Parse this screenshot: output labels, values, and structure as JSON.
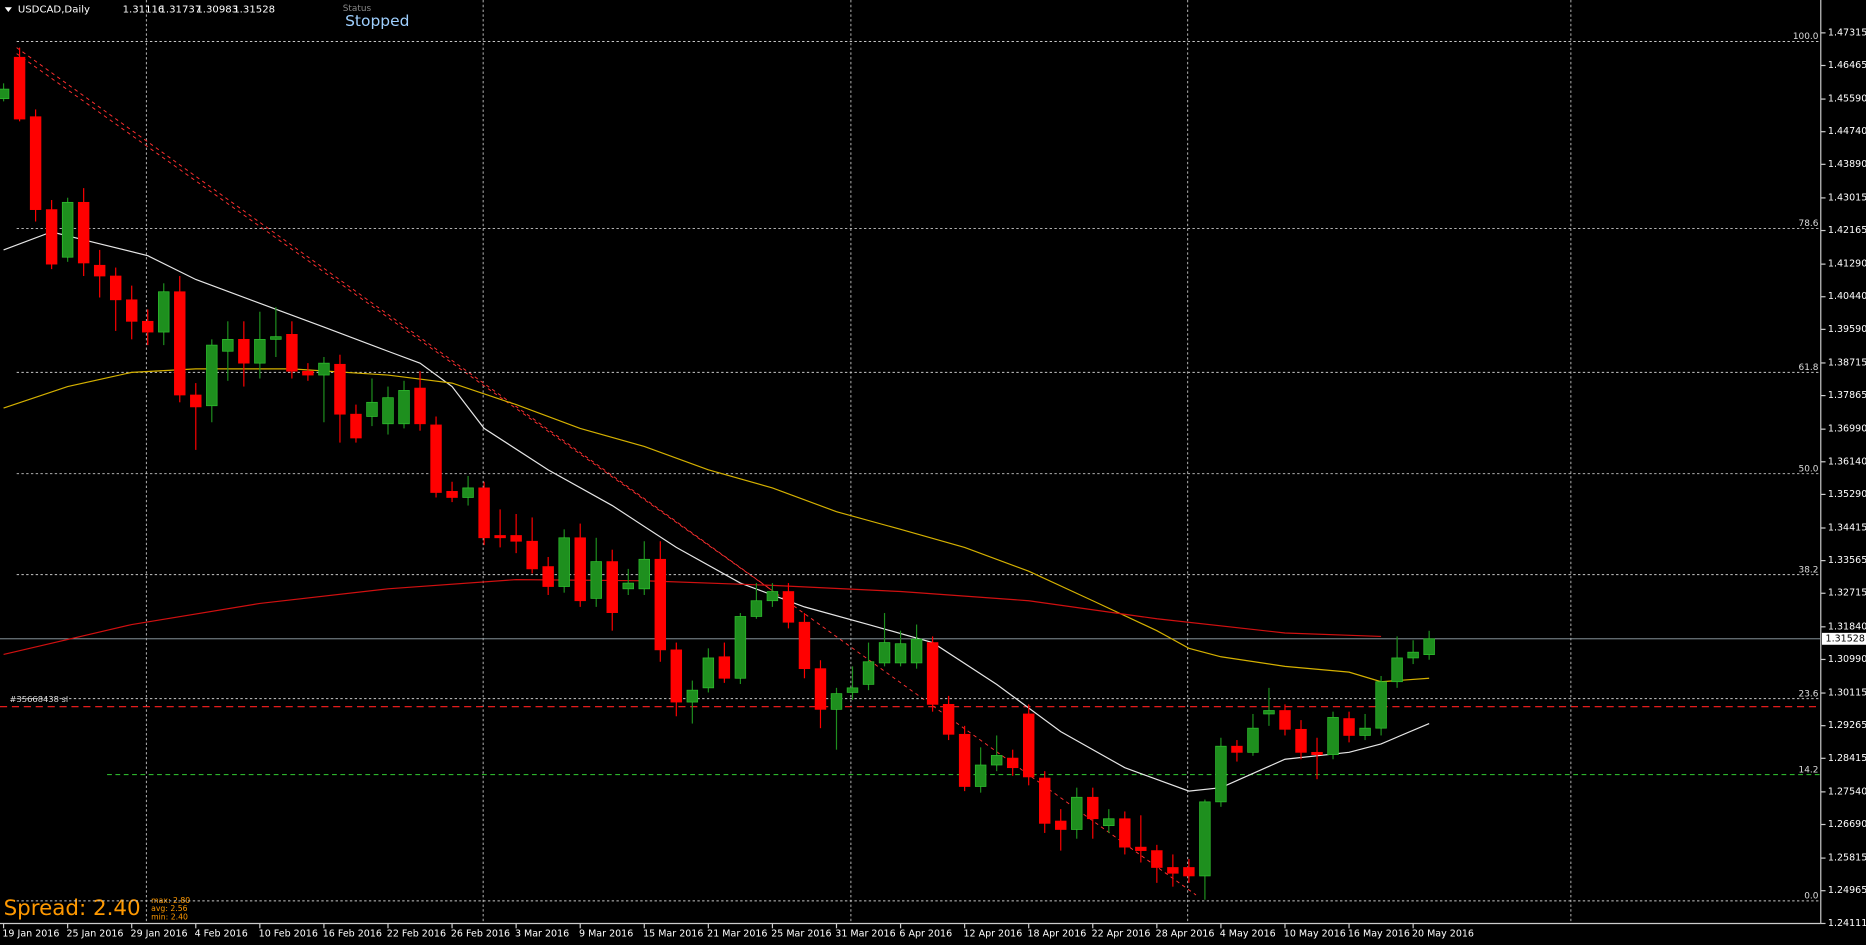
{
  "chart_data": {
    "type": "candlestick",
    "symbol": "USDCAD,Daily",
    "status_label": "Status",
    "status": "Stopped",
    "open": [
      1.456,
      1.4668,
      1.4513,
      1.4271,
      1.4147,
      1.429,
      1.4126,
      1.4098,
      1.4036,
      1.398,
      1.3952,
      1.4057,
      1.3788,
      1.376,
      1.3902,
      1.3933,
      1.3871,
      1.3933,
      1.3946,
      1.385,
      1.384,
      1.3868,
      1.3738,
      1.3732,
      1.3713,
      1.3713,
      1.3806,
      1.371,
      1.3537,
      1.3521,
      1.3546,
      1.3422,
      1.3422,
      1.3407,
      1.3341,
      1.3289,
      1.3416,
      1.3258,
      1.3354,
      1.3283,
      1.3283,
      1.336,
      1.3124,
      1.2988,
      1.3025,
      1.3106,
      1.305,
      1.3211,
      1.3252,
      1.3276,
      1.3196,
      1.3075,
      1.2969,
      1.3013,
      1.3034,
      1.309,
      1.309,
      1.309,
      1.3143,
      1.2982,
      1.2904,
      1.2768,
      1.2824,
      1.2842,
      1.2957,
      1.279,
      1.2678,
      1.2656,
      1.274,
      1.2666,
      1.2684,
      1.261,
      1.2601,
      1.2557,
      1.2557,
      1.2535,
      1.2728,
      1.2873,
      1.2857,
      1.2957,
      1.2966,
      1.2917,
      1.2857,
      1.2851,
      1.2945,
      1.2901,
      1.292,
      1.3041,
      1.3103,
      1.31116
    ],
    "high": [
      1.46,
      1.4693,
      1.4532,
      1.4296,
      1.4302,
      1.4327,
      1.4166,
      1.412,
      1.4073,
      1.4011,
      1.4079,
      1.4098,
      1.3819,
      1.3933,
      1.398,
      1.398,
      1.4005,
      1.4017,
      1.398,
      1.3871,
      1.3887,
      1.3893,
      1.3763,
      1.3831,
      1.381,
      1.3825,
      1.385,
      1.3732,
      1.3562,
      1.3577,
      1.3562,
      1.349,
      1.3478,
      1.3469,
      1.3366,
      1.3438,
      1.3453,
      1.3416,
      1.3385,
      1.3335,
      1.3407,
      1.3407,
      1.3143,
      1.3044,
      1.3128,
      1.3143,
      1.322,
      1.3298,
      1.3298,
      1.3298,
      1.322,
      1.3097,
      1.3025,
      1.3081,
      1.3143,
      1.322,
      1.3174,
      1.319,
      1.3159,
      1.3004,
      1.2926,
      1.287,
      1.2901,
      1.2864,
      1.2982,
      1.2808,
      1.2709,
      1.2765,
      1.2765,
      1.2709,
      1.2703,
      1.2693,
      1.2616,
      1.2591,
      1.2579,
      1.2734,
      1.2895,
      1.2889,
      1.2957,
      1.3025,
      1.2982,
      1.2941,
      1.2895,
      1.2963,
      1.2963,
      1.2957,
      1.3056,
      1.3159,
      1.3149,
      1.31737
    ],
    "low": [
      1.4553,
      1.4501,
      1.424,
      1.4116,
      1.4135,
      1.4098,
      1.4042,
      1.3955,
      1.3933,
      1.3918,
      1.3918,
      1.3769,
      1.3645,
      1.3717,
      1.3825,
      1.381,
      1.3831,
      1.3887,
      1.3831,
      1.3825,
      1.3717,
      1.3664,
      1.3664,
      1.3707,
      1.3685,
      1.3701,
      1.3695,
      1.3521,
      1.3509,
      1.35,
      1.3397,
      1.3391,
      1.3376,
      1.3323,
      1.3267,
      1.3273,
      1.3236,
      1.3236,
      1.3174,
      1.3267,
      1.3267,
      1.3093,
      1.2951,
      1.2932,
      1.3013,
      1.3038,
      1.3035,
      1.3205,
      1.3236,
      1.318,
      1.305,
      1.292,
      1.2864,
      1.2994,
      1.3019,
      1.3081,
      1.3081,
      1.3075,
      1.2963,
      1.2889,
      1.2756,
      1.2752,
      1.2808,
      1.2796,
      1.2771,
      1.2647,
      1.2601,
      1.2632,
      1.2632,
      1.2647,
      1.2591,
      1.257,
      1.2517,
      1.2507,
      1.2517,
      1.2473,
      1.2715,
      1.2833,
      1.2848,
      1.2926,
      1.2901,
      1.2839,
      1.2787,
      1.2839,
      1.2883,
      1.2889,
      1.2901,
      1.3025,
      1.3087,
      1.30983
    ],
    "close": [
      1.4585,
      1.4507,
      1.4271,
      1.4129,
      1.429,
      1.4132,
      1.4098,
      1.4036,
      1.398,
      1.3952,
      1.4057,
      1.3788,
      1.3757,
      1.3918,
      1.3933,
      1.3871,
      1.3933,
      1.394,
      1.385,
      1.384,
      1.3871,
      1.3738,
      1.3676,
      1.3769,
      1.3781,
      1.38,
      1.3713,
      1.3534,
      1.3521,
      1.3546,
      1.3416,
      1.3416,
      1.3407,
      1.3335,
      1.3289,
      1.3416,
      1.3252,
      1.3354,
      1.3221,
      1.3298,
      1.336,
      1.3124,
      1.2988,
      1.3019,
      1.3103,
      1.305,
      1.3211,
      1.3252,
      1.3276,
      1.3196,
      1.3075,
      1.2969,
      1.301,
      1.3025,
      1.3093,
      1.3143,
      1.314,
      1.3152,
      1.2982,
      1.2904,
      1.2768,
      1.2824,
      1.2849,
      1.2817,
      1.2793,
      1.2672,
      1.2656,
      1.274,
      1.2684,
      1.2684,
      1.261,
      1.2601,
      1.2557,
      1.2542,
      1.2535,
      1.2728,
      1.2873,
      1.2857,
      1.292,
      1.2966,
      1.2917,
      1.2857,
      1.2851,
      1.2948,
      1.2901,
      1.292,
      1.3041,
      1.3103,
      1.3118,
      1.31528
    ],
    "up_color": "#1e8f1e",
    "down_color": "#ff0000",
    "xlim": [
      -0.223,
      113.45
    ],
    "xticks": [
      {
        "value": 0,
        "label": "19 Jan 2016"
      },
      {
        "value": 4,
        "label": "25 Jan 2016"
      },
      {
        "value": 8,
        "label": "29 Jan 2016"
      },
      {
        "value": 12,
        "label": "4 Feb 2016"
      },
      {
        "value": 16,
        "label": "10 Feb 2016"
      },
      {
        "value": 20,
        "label": "16 Feb 2016"
      },
      {
        "value": 24,
        "label": "22 Feb 2016"
      },
      {
        "value": 28,
        "label": "26 Feb 2016"
      },
      {
        "value": 32,
        "label": "3 Mar 2016"
      },
      {
        "value": 36,
        "label": "9 Mar 2016"
      },
      {
        "value": 40,
        "label": "15 Mar 2016"
      },
      {
        "value": 44,
        "label": "21 Mar 2016"
      },
      {
        "value": 48,
        "label": "25 Mar 2016"
      },
      {
        "value": 52,
        "label": "31 Mar 2016"
      },
      {
        "value": 56,
        "label": "6 Apr 2016"
      },
      {
        "value": 60,
        "label": "12 Apr 2016"
      },
      {
        "value": 64,
        "label": "18 Apr 2016"
      },
      {
        "value": 68,
        "label": "22 Apr 2016"
      },
      {
        "value": 72,
        "label": "28 Apr 2016"
      },
      {
        "value": 76,
        "label": "4 May 2016"
      },
      {
        "value": 80,
        "label": "10 May 2016"
      },
      {
        "value": 84,
        "label": "16 May 2016"
      },
      {
        "value": 88,
        "label": "20 May 2016"
      }
    ],
    "ylim": [
      1.2411,
      1.4817
    ],
    "yticks": [
      1.47315,
      1.46465,
      {
        "value": 1.4559,
        "label": "1.45590"
      },
      {
        "value": 1.4474,
        "label": "1.44740"
      },
      {
        "value": 1.4389,
        "label": "1.43890"
      },
      1.43015,
      1.42165,
      {
        "value": 1.4129,
        "label": "1.41290"
      },
      {
        "value": 1.4044,
        "label": "1.40440"
      },
      {
        "value": 1.3959,
        "label": "1.39590"
      },
      1.38715,
      1.37865,
      {
        "value": 1.3699,
        "label": "1.36990"
      },
      {
        "value": 1.3614,
        "label": "1.36140"
      },
      {
        "value": 1.3529,
        "label": "1.35290"
      },
      1.34415,
      1.33565,
      1.32715,
      {
        "value": 1.3184,
        "label": "1.31840"
      },
      {
        "value": 1.3099,
        "label": "1.30990"
      },
      1.30115,
      1.29265,
      1.28415,
      {
        "value": 1.2754,
        "label": "1.27540"
      },
      {
        "value": 1.2669,
        "label": "1.26690"
      },
      1.25815,
      1.24965,
      1.24111
    ],
    "overlays": [
      {
        "color": "#e6e6e6",
        "x": [
          0,
          3,
          6,
          9,
          12,
          16,
          20,
          24,
          26,
          28,
          30,
          34,
          38,
          42,
          46,
          50,
          54,
          58,
          62,
          66,
          70,
          74,
          76,
          78,
          80,
          84,
          86,
          89
        ],
        "values": [
          1.4166,
          1.4213,
          1.4182,
          1.4151,
          1.4089,
          1.4027,
          1.3965,
          1.3902,
          1.3871,
          1.381,
          1.3701,
          1.3593,
          1.35,
          1.3391,
          1.3298,
          1.3236,
          1.319,
          1.3143,
          1.3034,
          1.2911,
          1.2817,
          1.2756,
          1.2765,
          1.2802,
          1.2839,
          1.2857,
          1.2879,
          1.2932
        ]
      },
      {
        "color": "#d4b000",
        "x": [
          0,
          4,
          8,
          12,
          18,
          24,
          28,
          32,
          36,
          40,
          44,
          48,
          52,
          56,
          60,
          64,
          68,
          72,
          74,
          76,
          80,
          84,
          86,
          89
        ],
        "values": [
          1.3754,
          1.381,
          1.3847,
          1.3856,
          1.3856,
          1.384,
          1.3819,
          1.3763,
          1.3701,
          1.3654,
          1.3593,
          1.3546,
          1.3484,
          1.3438,
          1.3391,
          1.3329,
          1.3252,
          1.3174,
          1.3128,
          1.3106,
          1.3081,
          1.3066,
          1.3041,
          1.305
        ]
      },
      {
        "color": "#d01010",
        "x": [
          0,
          8,
          16,
          24,
          32,
          40,
          48,
          56,
          64,
          72,
          80,
          86
        ],
        "values": [
          1.3112,
          1.319,
          1.3245,
          1.3283,
          1.3307,
          1.3304,
          1.3292,
          1.3276,
          1.3252,
          1.3205,
          1.3168,
          1.3159
        ]
      }
    ],
    "fib_levels": [
      {
        "label": "100.0",
        "value": 1.4709,
        "color": "#c8c8c8"
      },
      {
        "label": "78.6",
        "value": 1.4222,
        "color": "#c8c8c8"
      },
      {
        "label": "61.8",
        "value": 1.3847,
        "color": "#c8c8c8"
      },
      {
        "label": "50.0",
        "value": 1.3583,
        "color": "#c8c8c8"
      },
      {
        "label": "38.2",
        "value": 1.332,
        "color": "#c8c8c8"
      },
      {
        "label": "23.6",
        "value": 1.2997,
        "color": "#c8c8c8"
      },
      {
        "label": "14.2",
        "value": 1.2799,
        "color": "#33cc33"
      },
      {
        "label": "0.0",
        "value": 1.247,
        "color": "#c8c8c8"
      }
    ],
    "order": {
      "label": "#35668438 sl",
      "value": 1.2976,
      "color": "#ff2020"
    },
    "spread": {
      "label": "Spread: 2.40",
      "stats": [
        "max: 2.80",
        "avg: 2.56",
        "min: 2.40"
      ]
    }
  }
}
